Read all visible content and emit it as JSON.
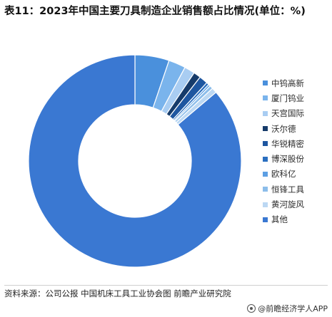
{
  "title": "表11：2023年中国主要刀具制造企业销售额占比情况(单位：%)",
  "source": "资料来源：公司公报 中国机床工具工业协会图 前瞻产业研究院",
  "footer_brand": "@前瞻经济学人APP",
  "chart_data": {
    "type": "pie",
    "donut": true,
    "categories": [
      "中钨高新",
      "厦门钨业",
      "天宫国际",
      "沃尔德",
      "华锐精密",
      "博深股份",
      "欧科亿",
      "恒锋工具",
      "黄河旋风",
      "其他"
    ],
    "values": [
      5.2,
      2.6,
      1.6,
      1.1,
      1.3,
      0.4,
      0.3,
      0.5,
      0.8,
      86.2
    ],
    "colors": [
      "#4a90dc",
      "#7ab4ec",
      "#a9cdf2",
      "#163b6a",
      "#1e56a0",
      "#2a6fc0",
      "#5d9fe3",
      "#8cbdea",
      "#bcd8f3",
      "#3a78d2"
    ],
    "legend_position": "right"
  }
}
